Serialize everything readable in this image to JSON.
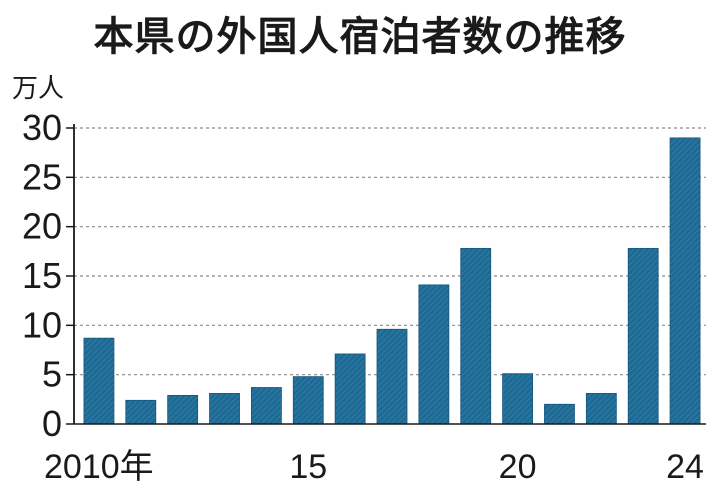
{
  "chart_data": {
    "type": "bar",
    "title": "本県の外国人宿泊者数の推移",
    "ylabel": "万人",
    "xlabel": "",
    "categories": [
      "2010",
      "2011",
      "2012",
      "2013",
      "2014",
      "2015",
      "2016",
      "2017",
      "2018",
      "2019",
      "2020",
      "2021",
      "2022",
      "2023",
      "2024"
    ],
    "x_tick_labels": [
      {
        "index": 0,
        "label": "2010年"
      },
      {
        "index": 5,
        "label": "15"
      },
      {
        "index": 10,
        "label": "20"
      },
      {
        "index": 14,
        "label": "24"
      }
    ],
    "values": [
      8.7,
      2.4,
      2.9,
      3.1,
      3.7,
      4.8,
      7.1,
      9.6,
      14.1,
      17.8,
      5.1,
      2.0,
      3.1,
      17.8,
      29.0
    ],
    "ylim": [
      0,
      30
    ],
    "yticks": [
      0,
      5,
      10,
      15,
      20,
      25,
      30
    ],
    "grid": true,
    "bar_color": "#1e6a94"
  }
}
